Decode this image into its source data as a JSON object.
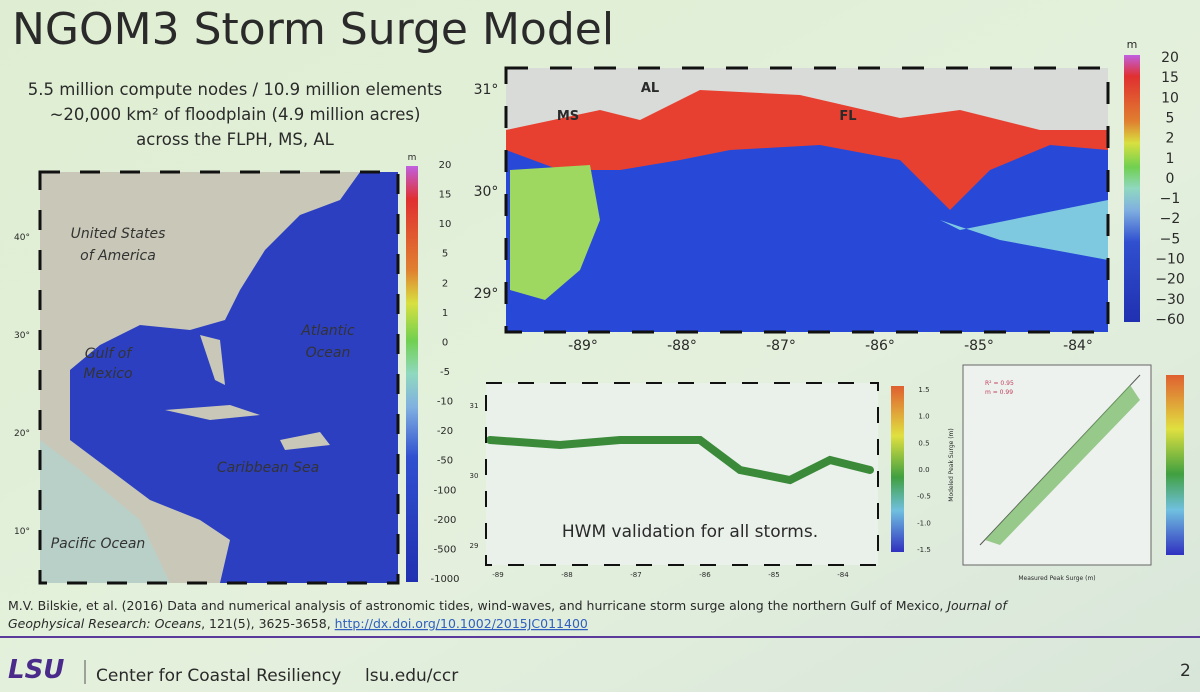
{
  "title": "NGOM3 Storm Surge Model",
  "summary": [
    "5.5 million compute nodes / 10.9 million elements",
    "~20,000 km² of floodplain (4.9 million acres)",
    "across the FLPH, MS, AL"
  ],
  "left_map": {
    "place_labels": [
      "United States",
      "of America",
      "Gulf of",
      "Mexico",
      "Atlantic",
      "Ocean",
      "Caribbean Sea",
      "Pacific Ocean"
    ],
    "lat_labels": [
      "40°",
      "30°",
      "20°",
      "10°"
    ],
    "colorbar": {
      "unit": "m",
      "labels": [
        "20",
        "15",
        "10",
        "5",
        "2",
        "1",
        "0",
        "-5",
        "-10",
        "-20",
        "-50",
        "-100",
        "-200",
        "-500",
        "-1000"
      ]
    }
  },
  "top_map": {
    "state_labels": [
      "MS",
      "AL",
      "FL"
    ],
    "lat_labels": [
      "31°",
      "30°",
      "29°"
    ],
    "lon_labels": [
      "-89°",
      "-88°",
      "-87°",
      "-86°",
      "-85°",
      "-84°"
    ],
    "colorbar": {
      "unit": "m",
      "labels": [
        "20",
        "15",
        "10",
        "5",
        "2",
        "1",
        "0",
        "−1",
        "−2",
        "−5",
        "−10",
        "−20",
        "−30",
        "−60"
      ]
    }
  },
  "hwm_map": {
    "caption": "HWM validation for all storms.",
    "lat_labels": [
      "31",
      "30",
      "29"
    ],
    "lon_labels": [
      "-89",
      "-88",
      "-87",
      "-86",
      "-85",
      "-84"
    ],
    "colorbar": {
      "labels": [
        "1.5",
        "1.0",
        "0.5",
        "0.0",
        "-0.5",
        "-1.0",
        "-1.5"
      ]
    }
  },
  "scatter": {
    "y_label": "Modeled Peak Surge (m)",
    "x_label": "Measured Peak Surge (m)",
    "stats": [
      "R² = 0.95",
      "m = 0.99"
    ]
  },
  "citation": {
    "text": "M.V. Bilskie, et al. (2016) Data and numerical analysis of astronomic tides, wind-waves, and hurricane storm surge along the northern Gulf of Mexico,",
    "journal_a": "Journal of",
    "journal_b": "Geophysical Research: Oceans",
    "details": ", 121(5), 3625-3658,",
    "link": "http://dx.doi.org/10.1002/2015JC011400"
  },
  "footer": {
    "logo": "LSU",
    "center": "Center for Coastal Resiliency",
    "url": "lsu.edu/ccr",
    "page": "2"
  }
}
